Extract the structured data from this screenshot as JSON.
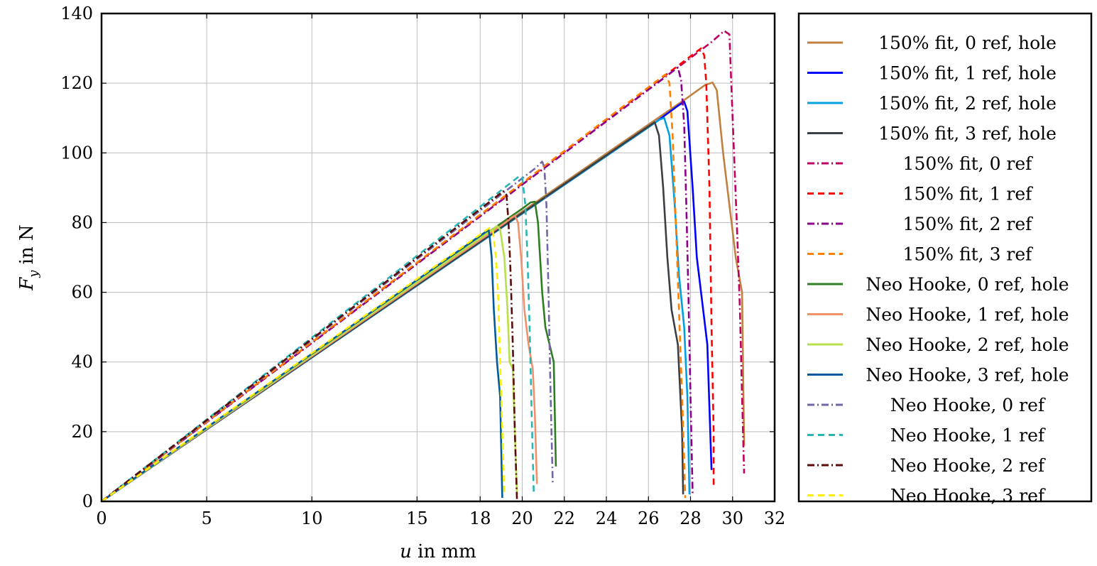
{
  "chart_data": {
    "type": "line",
    "title": "",
    "xlabel_var": "u",
    "xlabel_rest": " in mm",
    "ylabel_var": "F",
    "ylabel_sub": "y",
    "ylabel_rest": " in N",
    "x_ticks": [
      0,
      5,
      10,
      15,
      18,
      20,
      22,
      24,
      26,
      28,
      30,
      32
    ],
    "y_ticks": [
      0,
      20,
      40,
      60,
      80,
      100,
      120,
      140
    ],
    "xlim": [
      0,
      32
    ],
    "ylim": [
      0,
      140
    ],
    "grid": true,
    "legend_position": "outside-right",
    "series": [
      {
        "name": "150% fit, 0 ref, hole",
        "color": "#bf8040",
        "dash": "solid",
        "x": [
          0,
          27.8,
          28.7,
          29.05,
          29.25,
          29.55,
          29.95,
          30.15,
          30.45,
          30.55
        ],
        "y": [
          0,
          115.6,
          119.5,
          120.2,
          118.0,
          100.0,
          80.0,
          70.0,
          60.0,
          16.0
        ]
      },
      {
        "name": "150% fit, 1 ref, hole",
        "color": "#0000ff",
        "dash": "solid",
        "x": [
          0,
          26.3,
          27.4,
          27.7,
          27.85,
          28.1,
          28.3,
          28.6,
          28.8,
          29.0
        ],
        "y": [
          0,
          108.6,
          113.5,
          114.7,
          112.0,
          90.0,
          70.0,
          55.0,
          45.0,
          9.0
        ]
      },
      {
        "name": "150% fit, 2 ref, hole",
        "color": "#00a0e0",
        "dash": "solid",
        "x": [
          0,
          26.3,
          26.55,
          26.75,
          27.0,
          27.25,
          27.45,
          27.7,
          27.85,
          27.95
        ],
        "y": [
          0,
          108.6,
          109.6,
          110.0,
          105.0,
          85.0,
          65.0,
          50.0,
          30.0,
          2.0
        ]
      },
      {
        "name": "150% fit, 3 ref, hole",
        "color": "#3a3f44",
        "dash": "solid",
        "x": [
          0,
          26.0,
          26.3,
          26.5,
          26.7,
          26.9,
          27.1,
          27.4,
          27.6,
          27.65
        ],
        "y": [
          0,
          107.6,
          108.8,
          105.0,
          90.0,
          70.0,
          55.0,
          45.0,
          20.0,
          2.0
        ]
      },
      {
        "name": "150% fit, 0 ref",
        "color": "#c00060",
        "dash": "dashdot",
        "x": [
          0,
          29.0,
          29.6,
          29.85,
          30.0,
          30.2,
          30.35,
          30.45,
          30.55
        ],
        "y": [
          0,
          131.8,
          135.0,
          134.0,
          110.0,
          80.0,
          55.0,
          30.0,
          8.0
        ]
      },
      {
        "name": "150% fit, 1 ref",
        "color": "#ff0000",
        "dash": "dashed",
        "x": [
          0,
          28.5,
          28.65,
          28.75,
          28.9,
          29.0,
          29.1,
          29.1
        ],
        "y": [
          0,
          130.0,
          128.0,
          120.0,
          90.0,
          50.0,
          20.0,
          4.0
        ]
      },
      {
        "name": "150% fit, 2 ref",
        "color": "#8b008b",
        "dash": "dashdot",
        "x": [
          0,
          27.4,
          27.55,
          27.7,
          27.8,
          27.9,
          28.0,
          28.1
        ],
        "y": [
          0,
          124.5,
          121.0,
          108.0,
          85.0,
          60.0,
          30.0,
          2.0
        ]
      },
      {
        "name": "150% fit, 3 ref",
        "color": "#ff8000",
        "dash": "dashed",
        "x": [
          0,
          26.8,
          27.0,
          27.15,
          27.3,
          27.45,
          27.6,
          27.75
        ],
        "y": [
          0,
          122.5,
          120.0,
          105.0,
          80.0,
          55.0,
          30.0,
          1.0
        ]
      },
      {
        "name": "Neo Hooke, 0 ref, hole",
        "color": "#2e7d22",
        "dash": "solid",
        "x": [
          0,
          20.0,
          20.4,
          20.6,
          20.75,
          20.95,
          21.1,
          21.3,
          21.5,
          21.55,
          21.6
        ],
        "y": [
          0,
          84.0,
          85.8,
          86.0,
          80.0,
          60.0,
          50.0,
          45.0,
          40.0,
          25.0,
          10.0
        ]
      },
      {
        "name": "Neo Hooke, 1 ref, hole",
        "color": "#f0906c",
        "dash": "solid",
        "x": [
          0,
          19.2,
          19.5,
          19.65,
          19.8,
          19.95,
          20.1,
          20.3,
          20.5,
          20.6,
          20.7
        ],
        "y": [
          0,
          80.0,
          81.5,
          82.0,
          80.0,
          70.0,
          55.0,
          45.0,
          38.0,
          25.0,
          5.0
        ]
      },
      {
        "name": "Neo Hooke, 2 ref, hole",
        "color": "#b8e04a",
        "dash": "solid",
        "x": [
          0,
          18.6,
          18.8,
          18.95,
          19.15,
          19.3,
          19.4,
          19.55,
          19.65,
          19.75
        ],
        "y": [
          0,
          78.0,
          79.0,
          78.0,
          70.0,
          55.0,
          40.0,
          38.0,
          20.0,
          2.0
        ]
      },
      {
        "name": "Neo Hooke, 3 ref, hole",
        "color": "#005a9c",
        "dash": "solid",
        "x": [
          0,
          18.3,
          18.4,
          18.45,
          18.55,
          18.65,
          18.8,
          18.95,
          19.05
        ],
        "y": [
          0,
          77.5,
          78.0,
          76.0,
          70.0,
          55.0,
          40.0,
          30.0,
          1.0
        ]
      },
      {
        "name": "Neo Hooke, 0 ref",
        "color": "#7266a8",
        "dash": "dashdot",
        "x": [
          0,
          20.6,
          20.95,
          21.05,
          21.15,
          21.25,
          21.35,
          21.45
        ],
        "y": [
          0,
          95.5,
          97.5,
          96.0,
          85.0,
          60.0,
          30.0,
          5.0
        ]
      },
      {
        "name": "Neo Hooke, 1 ref",
        "color": "#2ab5b5",
        "dash": "dashed",
        "x": [
          0,
          19.9,
          20.0,
          20.15,
          20.25,
          20.35,
          20.45,
          20.55
        ],
        "y": [
          0,
          93.5,
          93.0,
          85.0,
          70.0,
          50.0,
          25.0,
          2.0
        ]
      },
      {
        "name": "Neo Hooke, 2 ref",
        "color": "#5c0a0a",
        "dash": "dashdot",
        "x": [
          0,
          19.1,
          19.25,
          19.35,
          19.45,
          19.55,
          19.65,
          19.75
        ],
        "y": [
          0,
          89.0,
          88.0,
          80.0,
          65.0,
          45.0,
          20.0,
          0.5
        ]
      },
      {
        "name": "Neo Hooke, 3 ref",
        "color": "#ffee00",
        "dash": "dashed",
        "x": [
          0,
          18.45,
          18.6,
          18.75,
          18.85,
          18.95,
          19.05,
          19.15
        ],
        "y": [
          0,
          78.5,
          78.0,
          70.0,
          60.0,
          40.0,
          20.0,
          2.0
        ]
      }
    ]
  }
}
